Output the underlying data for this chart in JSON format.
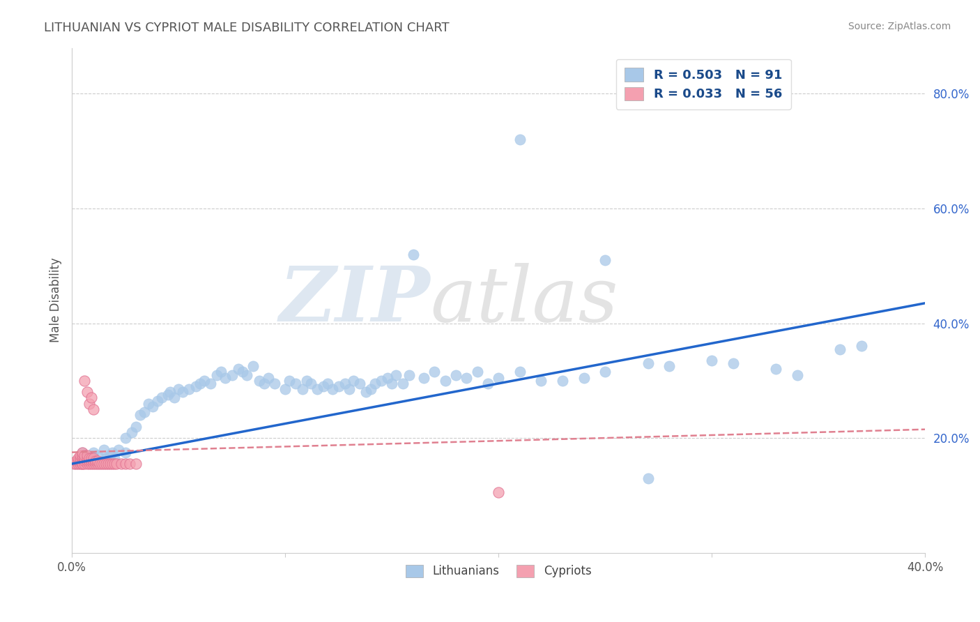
{
  "title": "LITHUANIAN VS CYPRIOT MALE DISABILITY CORRELATION CHART",
  "source": "Source: ZipAtlas.com",
  "ylabel": "Male Disability",
  "xlim": [
    0.0,
    0.4
  ],
  "ylim": [
    0.0,
    0.88
  ],
  "xticks": [
    0.0,
    0.1,
    0.2,
    0.3,
    0.4
  ],
  "yticks": [
    0.2,
    0.4,
    0.6,
    0.8
  ],
  "xtick_labels": [
    "0.0%",
    "",
    "",
    "",
    "40.0%"
  ],
  "ytick_labels": [
    "20.0%",
    "40.0%",
    "60.0%",
    "80.0%"
  ],
  "blue_color": "#a8c8e8",
  "pink_color": "#f4a0b0",
  "blue_line_color": "#2266cc",
  "pink_line_color": "#e08090",
  "r_blue": 0.503,
  "n_blue": 91,
  "r_pink": 0.033,
  "n_pink": 56,
  "legend_label_blue": "Lithuanians",
  "legend_label_pink": "Cypriots",
  "blue_line_x0": 0.0,
  "blue_line_y0": 0.155,
  "blue_line_x1": 0.4,
  "blue_line_y1": 0.435,
  "pink_line_x0": 0.0,
  "pink_line_y0": 0.175,
  "pink_line_x1": 0.4,
  "pink_line_y1": 0.215,
  "blue_scatter_x": [
    0.005,
    0.008,
    0.01,
    0.012,
    0.015,
    0.016,
    0.018,
    0.019,
    0.02,
    0.022,
    0.025,
    0.025,
    0.028,
    0.03,
    0.032,
    0.034,
    0.036,
    0.038,
    0.04,
    0.042,
    0.045,
    0.046,
    0.048,
    0.05,
    0.052,
    0.055,
    0.058,
    0.06,
    0.062,
    0.065,
    0.068,
    0.07,
    0.072,
    0.075,
    0.078,
    0.08,
    0.082,
    0.085,
    0.088,
    0.09,
    0.092,
    0.095,
    0.1,
    0.102,
    0.105,
    0.108,
    0.11,
    0.112,
    0.115,
    0.118,
    0.12,
    0.122,
    0.125,
    0.128,
    0.13,
    0.132,
    0.135,
    0.138,
    0.14,
    0.142,
    0.145,
    0.148,
    0.15,
    0.152,
    0.155,
    0.158,
    0.16,
    0.165,
    0.17,
    0.175,
    0.18,
    0.185,
    0.19,
    0.195,
    0.2,
    0.21,
    0.22,
    0.23,
    0.24,
    0.25,
    0.27,
    0.28,
    0.3,
    0.31,
    0.33,
    0.34,
    0.36,
    0.37,
    0.21,
    0.25,
    0.27
  ],
  "blue_scatter_y": [
    0.175,
    0.165,
    0.175,
    0.17,
    0.18,
    0.165,
    0.17,
    0.175,
    0.165,
    0.18,
    0.2,
    0.175,
    0.21,
    0.22,
    0.24,
    0.245,
    0.26,
    0.255,
    0.265,
    0.27,
    0.275,
    0.28,
    0.27,
    0.285,
    0.28,
    0.285,
    0.29,
    0.295,
    0.3,
    0.295,
    0.31,
    0.315,
    0.305,
    0.31,
    0.32,
    0.315,
    0.31,
    0.325,
    0.3,
    0.295,
    0.305,
    0.295,
    0.285,
    0.3,
    0.295,
    0.285,
    0.3,
    0.295,
    0.285,
    0.29,
    0.295,
    0.285,
    0.29,
    0.295,
    0.285,
    0.3,
    0.295,
    0.28,
    0.285,
    0.295,
    0.3,
    0.305,
    0.295,
    0.31,
    0.295,
    0.31,
    0.52,
    0.305,
    0.315,
    0.3,
    0.31,
    0.305,
    0.315,
    0.295,
    0.305,
    0.315,
    0.3,
    0.3,
    0.305,
    0.315,
    0.33,
    0.325,
    0.335,
    0.33,
    0.32,
    0.31,
    0.355,
    0.36,
    0.72,
    0.51,
    0.13
  ],
  "pink_scatter_x": [
    0.001,
    0.002,
    0.002,
    0.003,
    0.003,
    0.003,
    0.004,
    0.004,
    0.004,
    0.004,
    0.005,
    0.005,
    0.005,
    0.005,
    0.005,
    0.005,
    0.006,
    0.006,
    0.006,
    0.006,
    0.007,
    0.007,
    0.007,
    0.007,
    0.008,
    0.008,
    0.008,
    0.009,
    0.009,
    0.009,
    0.01,
    0.01,
    0.01,
    0.011,
    0.011,
    0.012,
    0.012,
    0.013,
    0.014,
    0.015,
    0.016,
    0.017,
    0.018,
    0.019,
    0.02,
    0.021,
    0.023,
    0.025,
    0.027,
    0.03,
    0.006,
    0.007,
    0.008,
    0.009,
    0.01,
    0.2
  ],
  "pink_scatter_y": [
    0.155,
    0.155,
    0.16,
    0.155,
    0.16,
    0.165,
    0.155,
    0.16,
    0.165,
    0.17,
    0.155,
    0.16,
    0.165,
    0.17,
    0.175,
    0.155,
    0.155,
    0.16,
    0.165,
    0.17,
    0.155,
    0.16,
    0.165,
    0.17,
    0.155,
    0.16,
    0.165,
    0.155,
    0.16,
    0.165,
    0.155,
    0.16,
    0.165,
    0.155,
    0.16,
    0.155,
    0.16,
    0.155,
    0.155,
    0.155,
    0.155,
    0.155,
    0.155,
    0.155,
    0.155,
    0.155,
    0.155,
    0.155,
    0.155,
    0.155,
    0.3,
    0.28,
    0.26,
    0.27,
    0.25,
    0.105
  ]
}
